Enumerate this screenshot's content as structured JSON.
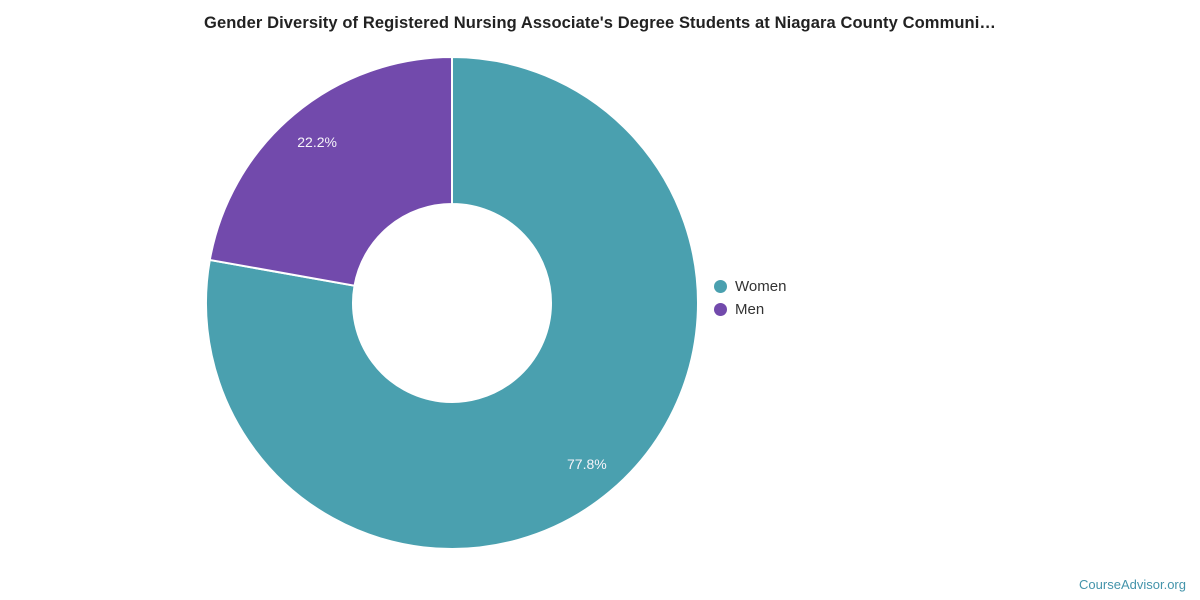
{
  "chart_data": {
    "type": "pie",
    "donut": true,
    "title": "Gender Diversity of Registered Nursing Associate's Degree Students at Niagara County Communi…",
    "start_angle_deg": 0,
    "direction": "clockwise",
    "legend_position": "right",
    "series": [
      {
        "name": "Women",
        "value": 77.8,
        "label": "77.8%",
        "color": "#4aa0af"
      },
      {
        "name": "Men",
        "value": 22.2,
        "label": "22.2%",
        "color": "#724aac"
      }
    ],
    "slice_label_color": "#f6f4fa",
    "slice_border_color": "#ffffff"
  },
  "footer": {
    "link_label": "CourseAdvisor.org",
    "link_color": "#4494ab"
  }
}
